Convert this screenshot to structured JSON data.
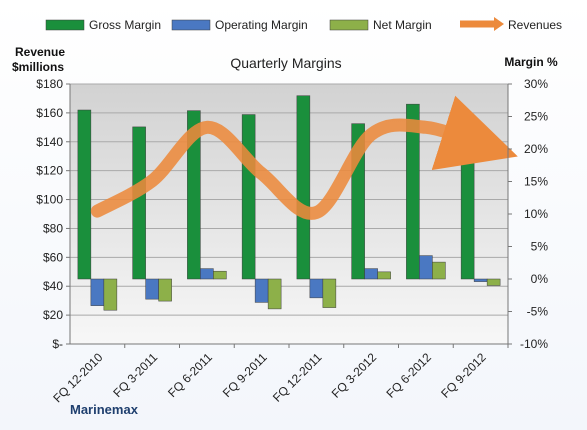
{
  "chart_data": {
    "type": "bar",
    "title": "Quarterly Margins",
    "brand": "Marinemax",
    "categories": [
      "FQ 12-2010",
      "FQ 3-2011",
      "FQ 6-2011",
      "FQ 9-2011",
      "FQ 12-2011",
      "FQ 3-2012",
      "FQ 6-2012",
      "FQ 9-2012"
    ],
    "y_left": {
      "label_line1": "Revenue",
      "label_line2": "$millions",
      "ylim": [
        0,
        180
      ],
      "ticks": [
        0,
        20,
        40,
        60,
        80,
        100,
        120,
        140,
        160,
        180
      ],
      "tick_labels": [
        "$-",
        "$20",
        "$40",
        "$60",
        "$80",
        "$100",
        "$120",
        "$140",
        "$160",
        "$180"
      ]
    },
    "y_right": {
      "label": "Margin %",
      "ylim": [
        -10,
        30
      ],
      "ticks": [
        -10,
        -5,
        0,
        5,
        10,
        15,
        20,
        25,
        30
      ],
      "tick_labels": [
        "-10%",
        "-5%",
        "0%",
        "5%",
        "10%",
        "15%",
        "20%",
        "25%",
        "30%"
      ]
    },
    "series": [
      {
        "name": "Gross Margin",
        "axis": "right",
        "color": "#1a8f3c",
        "values": [
          26,
          23.4,
          25.9,
          25.3,
          28.2,
          23.9,
          26.9,
          23.9
        ]
      },
      {
        "name": "Operating Margin",
        "axis": "right",
        "color": "#4a78c2",
        "values": [
          -4.1,
          -3.1,
          1.6,
          -3.6,
          -2.9,
          1.6,
          3.6,
          -0.4
        ]
      },
      {
        "name": "Net Margin",
        "axis": "right",
        "color": "#8db049",
        "values": [
          -4.8,
          -3.4,
          1.2,
          -4.6,
          -4.4,
          1.1,
          2.6,
          -1
        ]
      },
      {
        "name": "Revenues",
        "axis": "left",
        "type": "line",
        "color": "#ec8a3c",
        "values": [
          92,
          113,
          150,
          118,
          91,
          145,
          150,
          138
        ]
      }
    ],
    "legend": {
      "position": "top"
    },
    "grid": true
  }
}
